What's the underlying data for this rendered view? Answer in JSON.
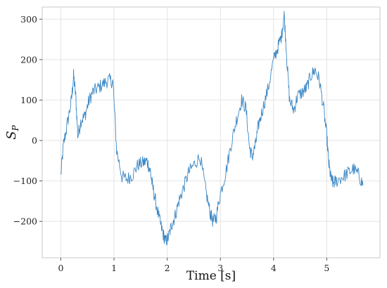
{
  "chart_data": {
    "type": "line",
    "xlabel": "Time [s]",
    "ylabel": "S",
    "ylabel_subscript": "P",
    "xlim": [
      -0.35,
      6.0
    ],
    "ylim": [
      -290,
      330
    ],
    "x_ticks": [
      0,
      1,
      2,
      3,
      4,
      5
    ],
    "x_tick_labels": [
      "0",
      "1",
      "2",
      "3",
      "4",
      "5"
    ],
    "y_ticks": [
      -200,
      -100,
      0,
      100,
      200,
      300
    ],
    "y_tick_labels": [
      "−200",
      "−100",
      "0",
      "100",
      "200",
      "300"
    ],
    "grid": true,
    "legend": "none",
    "line_color": "#3b87c4",
    "series": [
      {
        "x": [
          0.0,
          0.05,
          0.12,
          0.2,
          0.24,
          0.28,
          0.32,
          0.38,
          0.45,
          0.52,
          0.6,
          0.7,
          0.8,
          0.9,
          0.98,
          1.05,
          1.15,
          1.25,
          1.35,
          1.45,
          1.55,
          1.62,
          1.68,
          1.72,
          1.78,
          1.86,
          1.92,
          1.97,
          2.02,
          2.08,
          2.14,
          2.22,
          2.3,
          2.4,
          2.5,
          2.62,
          2.72,
          2.8,
          2.86,
          2.92,
          3.0,
          3.1,
          3.2,
          3.3,
          3.4,
          3.48,
          3.55,
          3.6,
          3.66,
          3.72,
          3.8,
          3.9,
          4.0,
          4.08,
          4.15,
          4.2,
          4.25,
          4.3,
          4.38,
          4.45,
          4.55,
          4.62,
          4.7,
          4.78,
          4.86,
          4.94,
          5.0,
          5.04,
          5.08,
          5.12,
          5.18,
          5.3,
          5.4,
          5.5,
          5.6,
          5.68
        ],
        "y": [
          -85,
          -10,
          40,
          100,
          160,
          110,
          10,
          50,
          60,
          95,
          120,
          130,
          140,
          150,
          145,
          -25,
          -90,
          -95,
          -85,
          -60,
          -55,
          -50,
          -75,
          -110,
          -150,
          -200,
          -230,
          -250,
          -240,
          -210,
          -190,
          -150,
          -120,
          -80,
          -60,
          -40,
          -120,
          -175,
          -200,
          -190,
          -130,
          -80,
          -10,
          50,
          100,
          80,
          -20,
          -40,
          -10,
          40,
          80,
          130,
          200,
          230,
          260,
          310,
          200,
          100,
          75,
          110,
          120,
          130,
          160,
          175,
          150,
          80,
          10,
          -60,
          -95,
          -105,
          -100,
          -90,
          -80,
          -70,
          -85,
          -110
        ]
      }
    ]
  }
}
